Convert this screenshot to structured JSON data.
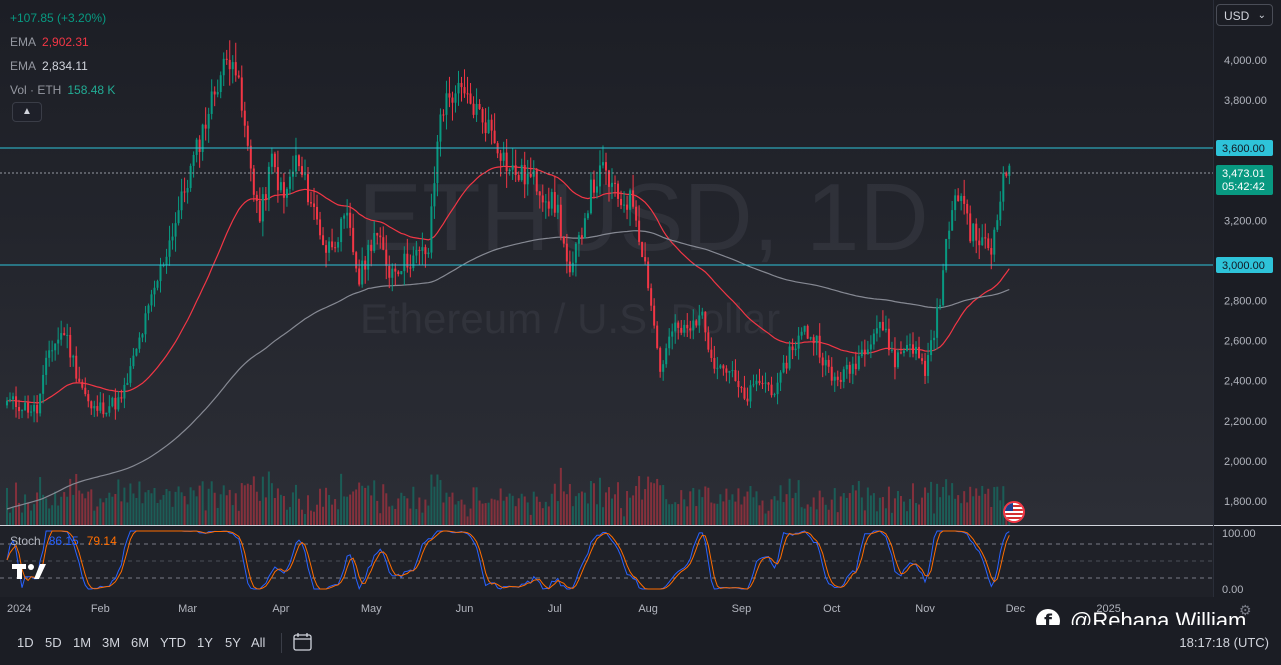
{
  "legend": {
    "change": "+107.85 (+3.20%)",
    "ema1_label": "EMA",
    "ema1_value": "2,902.31",
    "ema2_label": "EMA",
    "ema2_value": "2,834.11",
    "vol_label": "Vol · ETH",
    "vol_value": "158.48 K"
  },
  "currency": "USD",
  "watermark": {
    "symbol": "ETHUSD, 1D",
    "description": "Ethereum / U.S. Dollar"
  },
  "price_badges": {
    "level_high": "3,600.00",
    "last_price": "3,473.01",
    "countdown": "05:42:42",
    "level_low": "3,000.00"
  },
  "stoch": {
    "label": "Stoch",
    "k_value": "86.15",
    "d_value": "79.14",
    "ticks": [
      "100.00",
      "0.00"
    ]
  },
  "toolbar": {
    "timeframes": [
      "1D",
      "5D",
      "1M",
      "3M",
      "6M",
      "YTD",
      "1Y",
      "5Y",
      "All"
    ],
    "clock": "18:17:18 (UTC)"
  },
  "author": "@Rehana William",
  "colors": {
    "up": "#089981",
    "down": "#f23645",
    "ema_fast": "#f23645",
    "ema_slow": "#868993",
    "level_line": "#2ec3d9",
    "stoch_k": "#2962ff",
    "stoch_d": "#ff6d00"
  },
  "chart_data": {
    "type": "candlestick",
    "x_labels": [
      "2024",
      "Feb",
      "Mar",
      "Apr",
      "May",
      "Jun",
      "Jul",
      "Aug",
      "Sep",
      "Oct",
      "Nov",
      "Dec",
      "2025"
    ],
    "y_ticks": [
      "4,000.00",
      "3,800.00",
      "3,200.00",
      "2,800.00",
      "2,600.00",
      "2,400.00",
      "2,200.00",
      "2,000.00",
      "1,800.00"
    ],
    "ylim": [
      1680,
      4300
    ],
    "horizontal_levels": [
      3600,
      3000
    ],
    "last_price": 3473.01,
    "close_anchors": [
      {
        "day": 0,
        "close": 2300
      },
      {
        "day": 10,
        "close": 2250
      },
      {
        "day": 14,
        "close": 2550
      },
      {
        "day": 19,
        "close": 2650
      },
      {
        "day": 23,
        "close": 2450
      },
      {
        "day": 28,
        "close": 2250
      },
      {
        "day": 38,
        "close": 2300
      },
      {
        "day": 48,
        "close": 2800
      },
      {
        "day": 56,
        "close": 3200
      },
      {
        "day": 63,
        "close": 3550
      },
      {
        "day": 70,
        "close": 3900
      },
      {
        "day": 75,
        "close": 4050
      },
      {
        "day": 80,
        "close": 3550
      },
      {
        "day": 84,
        "close": 3200
      },
      {
        "day": 88,
        "close": 3500
      },
      {
        "day": 92,
        "close": 3300
      },
      {
        "day": 96,
        "close": 3500
      },
      {
        "day": 101,
        "close": 3300
      },
      {
        "day": 106,
        "close": 3050
      },
      {
        "day": 113,
        "close": 3200
      },
      {
        "day": 117,
        "close": 2900
      },
      {
        "day": 122,
        "close": 3150
      },
      {
        "day": 127,
        "close": 2950
      },
      {
        "day": 133,
        "close": 3000
      },
      {
        "day": 140,
        "close": 3050
      },
      {
        "day": 144,
        "close": 3750
      },
      {
        "day": 149,
        "close": 3850
      },
      {
        "day": 156,
        "close": 3750
      },
      {
        "day": 161,
        "close": 3650
      },
      {
        "day": 167,
        "close": 3450
      },
      {
        "day": 175,
        "close": 3400
      },
      {
        "day": 183,
        "close": 3250
      },
      {
        "day": 187,
        "close": 2900
      },
      {
        "day": 190,
        "close": 3100
      },
      {
        "day": 194,
        "close": 3350
      },
      {
        "day": 198,
        "close": 3450
      },
      {
        "day": 203,
        "close": 3300
      },
      {
        "day": 208,
        "close": 3300
      },
      {
        "day": 213,
        "close": 2900
      },
      {
        "day": 217,
        "close": 2450
      },
      {
        "day": 221,
        "close": 2650
      },
      {
        "day": 227,
        "close": 2650
      },
      {
        "day": 230,
        "close": 2750
      },
      {
        "day": 235,
        "close": 2500
      },
      {
        "day": 240,
        "close": 2450
      },
      {
        "day": 245,
        "close": 2300
      },
      {
        "day": 250,
        "close": 2400
      },
      {
        "day": 256,
        "close": 2350
      },
      {
        "day": 260,
        "close": 2550
      },
      {
        "day": 265,
        "close": 2650
      },
      {
        "day": 269,
        "close": 2600
      },
      {
        "day": 274,
        "close": 2400
      },
      {
        "day": 280,
        "close": 2450
      },
      {
        "day": 286,
        "close": 2600
      },
      {
        "day": 290,
        "close": 2700
      },
      {
        "day": 295,
        "close": 2500
      },
      {
        "day": 300,
        "close": 2600
      },
      {
        "day": 305,
        "close": 2450
      },
      {
        "day": 310,
        "close": 2800
      },
      {
        "day": 313,
        "close": 3200
      },
      {
        "day": 317,
        "close": 3350
      },
      {
        "day": 320,
        "close": 3150
      },
      {
        "day": 323,
        "close": 3100
      },
      {
        "day": 327,
        "close": 3050
      },
      {
        "day": 330,
        "close": 3350
      },
      {
        "day": 333,
        "close": 3473
      }
    ]
  }
}
